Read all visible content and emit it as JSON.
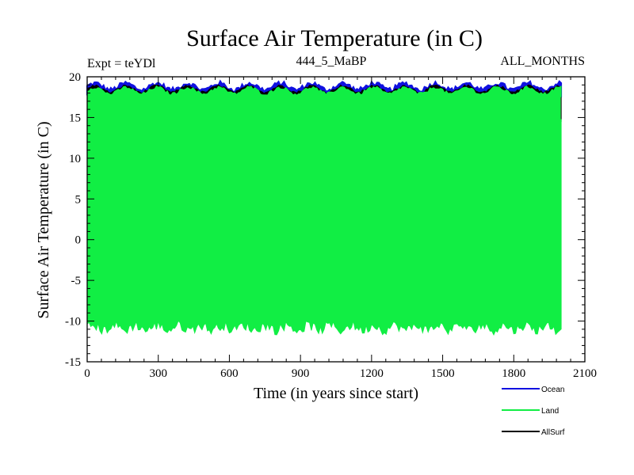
{
  "chart_data": {
    "type": "line",
    "title": "Surface Air Temperature (in C)",
    "subtitle_left": "Expt = teYDl",
    "subtitle_center": "444_5_MaBP",
    "subtitle_right": "ALL_MONTHS",
    "xlabel": "Time (in years since start)",
    "ylabel": "Surface Air Temperature (in C)",
    "xlim": [
      0,
      2100
    ],
    "ylim": [
      -15,
      20
    ],
    "xticks": [
      0,
      300,
      600,
      900,
      1200,
      1500,
      1800,
      2100
    ],
    "yticks": [
      -15,
      -10,
      -5,
      0,
      5,
      10,
      15,
      20
    ],
    "x_end": 2000,
    "series": [
      {
        "name": "Ocean",
        "color": "#1010e0",
        "kind": "band",
        "band_low": 17.8,
        "band_high": 18.8,
        "values_note": "monthly values oscillating roughly between 17.5 and 19.2 C"
      },
      {
        "name": "Land",
        "color": "#11ee44",
        "kind": "band",
        "band_low": -10.8,
        "band_high": 18.3,
        "values_note": "monthly values oscillating roughly between -11.5 and 18.5 C"
      },
      {
        "name": "AllSurf",
        "color": "#000000",
        "kind": "band",
        "band_low": 14.5,
        "band_high": 18.5,
        "values_note": "mostly hidden behind Land series"
      }
    ],
    "legend_position": "bottom-right"
  }
}
